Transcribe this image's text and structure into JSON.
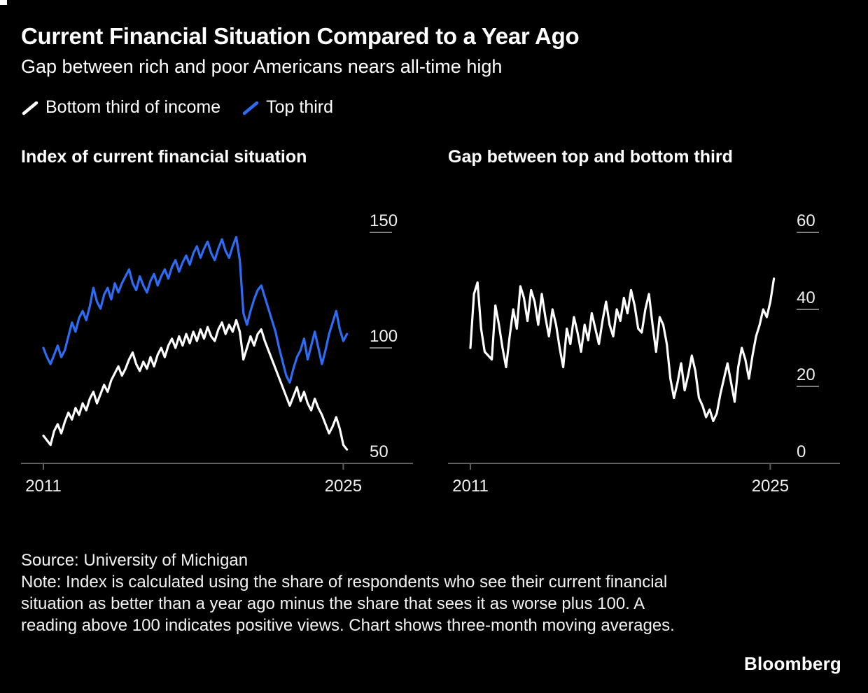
{
  "page": {
    "title": "Current Financial Situation Compared to a Year Ago",
    "subtitle": "Gap between rich and poor Americans nears all-time high"
  },
  "legend": [
    {
      "label": "Bottom third of income",
      "color": "#ffffff"
    },
    {
      "label": "Top third",
      "color": "#2d6df6"
    }
  ],
  "footer": {
    "source": "Source: University of Michigan",
    "note": "Note: Index is calculated using the share of respondents who see their current financial situation as better than a year ago minus the share that sees it as worse plus 100. A reading above 100 indicates positive views. Chart shows three-month moving averages.",
    "brand": "Bloomberg"
  },
  "colors": {
    "background": "#000000",
    "accent_blue": "#2d6df6",
    "line_white": "#ffffff",
    "axis": "#5e5e5e",
    "tick_dash": "#7f7f7f",
    "tick_text": "#f0f0f0"
  },
  "chart_data": [
    {
      "type": "line",
      "title": "Index of current financial situation",
      "x_unit": "year",
      "x_start": 2011.0,
      "x_step": 0.1667,
      "xticks": [
        2011,
        2025
      ],
      "ylim": [
        50,
        150
      ],
      "yticks": [
        150,
        100,
        50
      ],
      "grid": false,
      "legend_position": "top-of-page",
      "series": [
        {
          "name": "Top third",
          "color": "#2d6df6",
          "values": [
            100,
            96,
            93,
            97,
            101,
            96,
            99,
            105,
            111,
            107,
            113,
            116,
            112,
            118,
            126,
            120,
            117,
            123,
            126,
            121,
            128,
            124,
            128,
            131,
            134,
            128,
            125,
            131,
            127,
            124,
            129,
            132,
            127,
            131,
            134,
            130,
            135,
            138,
            133,
            137,
            140,
            136,
            141,
            144,
            139,
            143,
            146,
            141,
            138,
            143,
            147,
            142,
            139,
            144,
            148,
            138,
            115,
            110,
            116,
            121,
            125,
            127,
            122,
            117,
            112,
            107,
            100,
            94,
            88,
            85,
            91,
            96,
            99,
            104,
            95,
            101,
            107,
            100,
            93,
            99,
            106,
            111,
            116,
            108,
            103,
            106
          ]
        },
        {
          "name": "Bottom third of income",
          "color": "#ffffff",
          "values": [
            62,
            60,
            58,
            64,
            67,
            63,
            68,
            72,
            69,
            74,
            71,
            76,
            73,
            78,
            81,
            76,
            80,
            84,
            81,
            86,
            89,
            92,
            88,
            91,
            95,
            98,
            93,
            90,
            94,
            91,
            96,
            92,
            97,
            100,
            96,
            101,
            104,
            100,
            105,
            101,
            106,
            102,
            107,
            103,
            108,
            104,
            109,
            105,
            103,
            108,
            111,
            106,
            110,
            107,
            112,
            107,
            95,
            100,
            105,
            101,
            106,
            108,
            103,
            99,
            95,
            91,
            87,
            83,
            79,
            75,
            79,
            83,
            77,
            81,
            76,
            73,
            78,
            74,
            71,
            67,
            63,
            66,
            70,
            65,
            58,
            56
          ]
        }
      ]
    },
    {
      "type": "line",
      "title": "Gap between top and bottom third",
      "x_unit": "year",
      "x_start": 2011.0,
      "x_step": 0.1667,
      "xticks": [
        2011,
        2025
      ],
      "ylim": [
        0,
        60
      ],
      "yticks": [
        60,
        40,
        20,
        0
      ],
      "grid": false,
      "series": [
        {
          "name": "Gap (top third minus bottom third)",
          "color": "#ffffff",
          "values": [
            30,
            44,
            47,
            35,
            29,
            28,
            27,
            41,
            36,
            30,
            25,
            33,
            40,
            35,
            46,
            43,
            37,
            45,
            42,
            36,
            44,
            38,
            33,
            40,
            36,
            30,
            25,
            35,
            31,
            38,
            34,
            29,
            36,
            32,
            39,
            35,
            31,
            37,
            42,
            36,
            33,
            40,
            37,
            43,
            39,
            45,
            41,
            35,
            34,
            40,
            44,
            36,
            29,
            38,
            36,
            31,
            22,
            17,
            21,
            26,
            19,
            23,
            28,
            24,
            17,
            15,
            12,
            14,
            11,
            13,
            18,
            22,
            26,
            21,
            16,
            25,
            30,
            27,
            22,
            28,
            33,
            36,
            40,
            38,
            42,
            48
          ]
        }
      ]
    }
  ]
}
